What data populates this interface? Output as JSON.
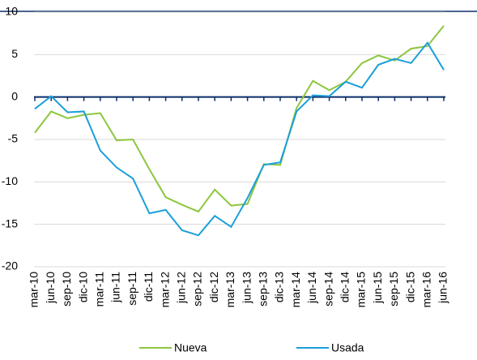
{
  "chart_data": {
    "type": "line",
    "categories": [
      "mar-10",
      "jun-10",
      "sep-10",
      "dic-10",
      "mar-11",
      "jun-11",
      "sep-11",
      "dic-11",
      "mar-12",
      "jun-12",
      "sep-12",
      "dic-12",
      "mar-13",
      "jun-13",
      "sep-13",
      "dic-13",
      "mar-14",
      "jun-14",
      "sep-14",
      "dic-14",
      "mar-15",
      "jun-15",
      "sep-15",
      "dic-15",
      "mar-16",
      "jun-16"
    ],
    "series": [
      {
        "name": "Nueva",
        "color": "#8dc63f",
        "values": [
          -4.2,
          -1.7,
          -2.5,
          -2.1,
          -1.9,
          -5.1,
          -5.0,
          -8.5,
          -11.8,
          -12.7,
          -13.5,
          -10.9,
          -12.8,
          -12.6,
          -7.9,
          -8.0,
          -1.3,
          1.9,
          0.8,
          1.8,
          4.0,
          4.9,
          4.3,
          5.7,
          6.0,
          8.4
        ]
      },
      {
        "name": "Usada",
        "color": "#1a9fdb",
        "values": [
          -1.4,
          0.1,
          -1.8,
          -1.7,
          -6.3,
          -8.3,
          -9.6,
          -13.7,
          -13.3,
          -15.7,
          -16.3,
          -14.0,
          -15.3,
          -11.9,
          -8.0,
          -7.7,
          -1.7,
          0.2,
          0.1,
          1.8,
          1.1,
          3.8,
          4.5,
          4.0,
          6.4,
          3.2
        ]
      }
    ],
    "ylim": [
      -20,
      10
    ],
    "yticks": [
      -20,
      -15,
      -10,
      -5,
      0,
      5,
      10
    ],
    "grid": true
  }
}
